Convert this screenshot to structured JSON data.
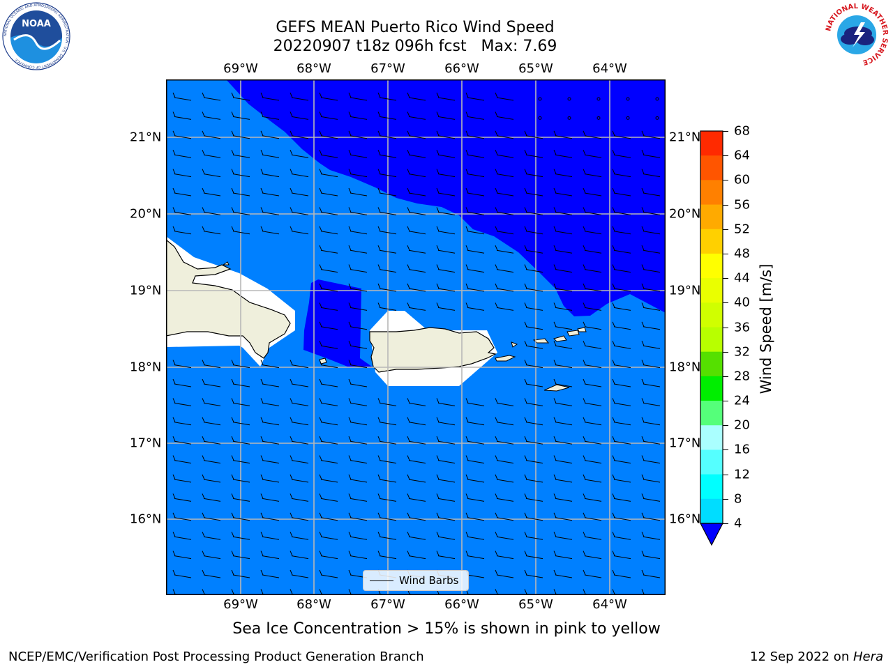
{
  "title": {
    "line1": "GEFS MEAN Puerto Rico Wind Speed",
    "line2": "20220907 t18z 096h fcst   Max: 7.69"
  },
  "axes": {
    "lon_labels": [
      "69°W",
      "68°W",
      "67°W",
      "66°W",
      "65°W",
      "64°W"
    ],
    "lat_labels": [
      "21°N",
      "20°N",
      "19°N",
      "18°N",
      "17°N",
      "16°N"
    ]
  },
  "colorbar": {
    "label": "Wind Speed [m/s]",
    "ticks": [
      "68",
      "64",
      "60",
      "56",
      "52",
      "48",
      "44",
      "40",
      "36",
      "32",
      "28",
      "24",
      "20",
      "16",
      "12",
      "8",
      "4"
    ],
    "colors": [
      "#ff0000",
      "#ff2a00",
      "#ff5500",
      "#ff8000",
      "#ffaa00",
      "#ffd000",
      "#ffff00",
      "#eaff00",
      "#d0ff00",
      "#b8ff00",
      "#55e000",
      "#00ee00",
      "#55ff7a",
      "#aaffff",
      "#55ffff",
      "#00ffff",
      "#00ddff",
      "#0080ff"
    ],
    "under_color": "#0000ff"
  },
  "map": {
    "land_color": "#efefdc",
    "ocean_low_color": "#0080ff",
    "ocean_lowest_color": "#0000ff"
  },
  "legend": {
    "label": "Wind Barbs"
  },
  "footnote": "Sea Ice Concentration > 15% is shown in pink to yellow",
  "credit": "NCEP/EMC/Verification Post Processing Product Generation Branch",
  "date": {
    "prefix": "12 Sep 2022 on ",
    "host": "Hera"
  },
  "logos": {
    "noaa": {
      "text": "NOAA",
      "ring_text": "NATIONAL OCEANIC AND ATMOSPHERIC ADMINISTRATION · U.S. DEPARTMENT OF COMMERCE"
    },
    "nws": {
      "ring_text": "NATIONAL WEATHER SERVICE"
    }
  }
}
